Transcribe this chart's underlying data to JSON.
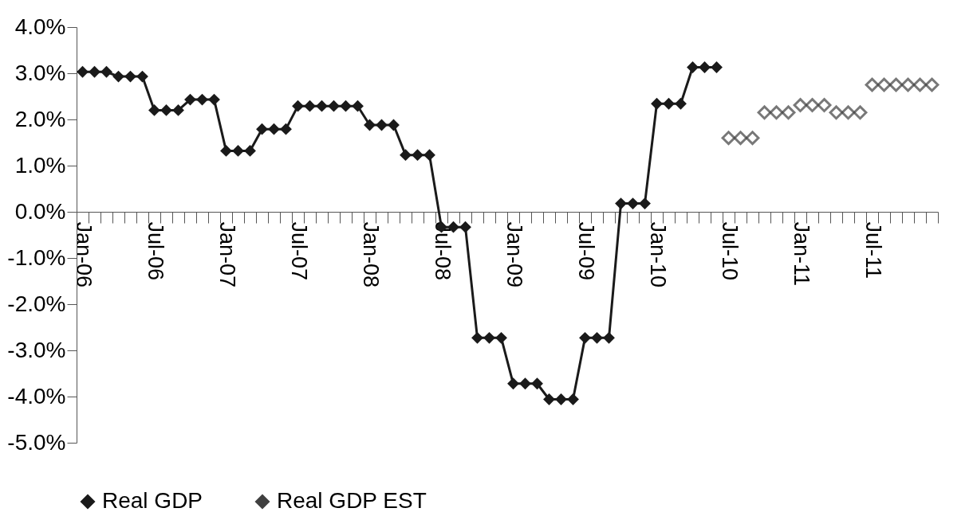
{
  "chart_data": {
    "type": "line",
    "categories": [
      "Jan-06",
      null,
      null,
      null,
      null,
      null,
      "Jul-06",
      null,
      null,
      null,
      null,
      null,
      "Jan-07",
      null,
      null,
      null,
      null,
      null,
      "Jul-07",
      null,
      null,
      null,
      null,
      null,
      "Jan-08",
      null,
      null,
      null,
      null,
      null,
      "Jul-08",
      null,
      null,
      null,
      null,
      null,
      "Jan-09",
      null,
      null,
      null,
      null,
      null,
      "Jul-09",
      null,
      null,
      null,
      null,
      null,
      "Jan-10",
      null,
      null,
      null,
      null,
      null,
      "Jul-10",
      null,
      null,
      null,
      null,
      null,
      "Jan-11",
      null,
      null,
      null,
      null,
      null,
      "Jul-11",
      null,
      null,
      null,
      null,
      null
    ],
    "series": [
      {
        "name": "Real GDP",
        "color": "#1a1a1a",
        "values": [
          3.03,
          3.03,
          3.03,
          2.93,
          2.93,
          2.93,
          2.2,
          2.2,
          2.2,
          2.43,
          2.43,
          2.43,
          1.32,
          1.32,
          1.32,
          1.79,
          1.79,
          1.79,
          2.29,
          2.29,
          2.29,
          2.29,
          2.29,
          2.29,
          1.88,
          1.88,
          1.88,
          1.23,
          1.23,
          1.23,
          -0.33,
          -0.33,
          -0.33,
          -2.73,
          -2.73,
          -2.73,
          -3.72,
          -3.72,
          -3.72,
          -4.06,
          -4.06,
          -4.06,
          -2.73,
          -2.73,
          -2.73,
          0.18,
          0.18,
          0.18,
          2.34,
          2.34,
          2.34,
          3.13,
          3.13,
          3.13,
          null,
          null,
          null,
          null,
          null,
          null,
          null,
          null,
          null,
          null,
          null,
          null,
          null,
          null,
          null,
          null,
          null,
          null
        ]
      },
      {
        "name": "Real GDP EST",
        "type": "scatter",
        "color": "#404040",
        "values": [
          null,
          null,
          null,
          null,
          null,
          null,
          null,
          null,
          null,
          null,
          null,
          null,
          null,
          null,
          null,
          null,
          null,
          null,
          null,
          null,
          null,
          null,
          null,
          null,
          null,
          null,
          null,
          null,
          null,
          null,
          null,
          null,
          null,
          null,
          null,
          null,
          null,
          null,
          null,
          null,
          null,
          null,
          null,
          null,
          null,
          null,
          null,
          null,
          null,
          null,
          null,
          null,
          null,
          null,
          1.6,
          1.6,
          1.6,
          2.15,
          2.15,
          2.15,
          2.31,
          2.31,
          2.31,
          2.15,
          2.15,
          2.15,
          2.75,
          2.75,
          2.75,
          2.75,
          2.75,
          2.75
        ]
      }
    ],
    "ylim": [
      -5,
      4
    ],
    "yticks": [
      {
        "value": -5,
        "label": "-5.0%"
      },
      {
        "value": -4,
        "label": "-4.0%"
      },
      {
        "value": -3,
        "label": "-3.0%"
      },
      {
        "value": -2,
        "label": "-2.0%"
      },
      {
        "value": -1,
        "label": "-1.0%"
      },
      {
        "value": 0,
        "label": "0.0%"
      },
      {
        "value": 1,
        "label": "1.0%"
      },
      {
        "value": 2,
        "label": "2.0%"
      },
      {
        "value": 3,
        "label": "3.0%"
      },
      {
        "value": 4,
        "label": "4.0%"
      }
    ],
    "grid": false,
    "legend": "bottom",
    "marker": "diamond",
    "line_style": "solid"
  }
}
